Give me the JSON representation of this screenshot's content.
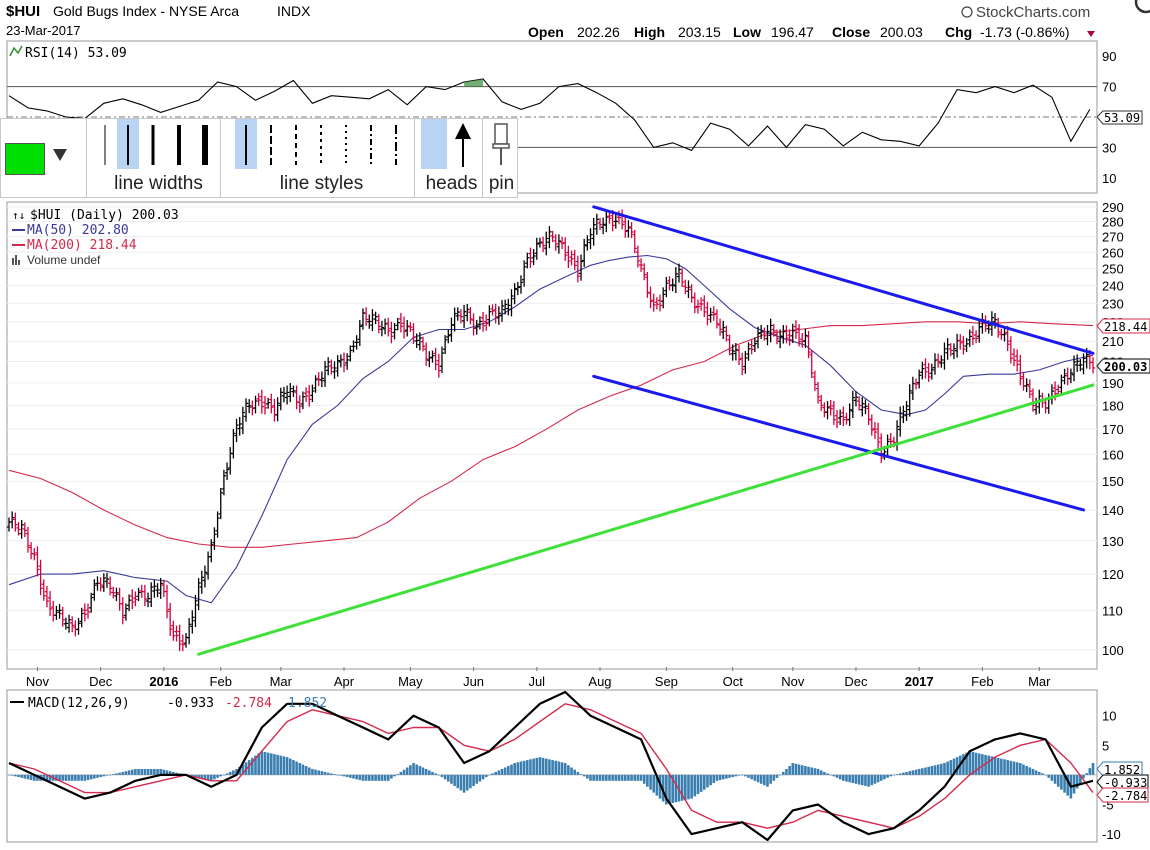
{
  "header": {
    "symbol": "$HUI",
    "name": "Gold Bugs Index - NYSE Arca",
    "exchange": "INDX",
    "date": "23-Mar-2017",
    "brand": "StockCharts.com",
    "quote": {
      "open_label": "Open",
      "open": "202.26",
      "high_label": "High",
      "high": "203.15",
      "low_label": "Low",
      "low": "196.47",
      "close_label": "Close",
      "close": "200.03",
      "chg_label": "Chg",
      "chg": "-1.73 (-0.86%)"
    }
  },
  "toolbar": {
    "color": "#00e000",
    "line_widths_label": "line widths",
    "line_styles_label": "line styles",
    "heads_label": "heads",
    "pin_label": "pin"
  },
  "colors": {
    "price_up": "#000000",
    "price_down": "#d4003c",
    "ma50": "#3a3a9a",
    "ma200": "#d4294a",
    "trend_blue": "#1a1aee",
    "trend_green": "#3fe03a",
    "macd_hist": "#3a7fb0",
    "rsi_fill": "#3a8a3a"
  },
  "chart_data": [
    {
      "type": "line",
      "id": "rsi",
      "legend": "RSI(14) 53.09",
      "ylim": [
        0,
        100
      ],
      "yticks": [
        10,
        30,
        50,
        70,
        90
      ],
      "reference_lines": [
        30,
        70
      ],
      "last_value_label": "53.09",
      "x": [
        0,
        6,
        12,
        18,
        24,
        30,
        36,
        42,
        48,
        54,
        60,
        66,
        72,
        78,
        84,
        90,
        96,
        102,
        108,
        114,
        120,
        126,
        132,
        138,
        144,
        150,
        156,
        162,
        168,
        174,
        180,
        186,
        192,
        198,
        204,
        210,
        216,
        222,
        228,
        234,
        240,
        246,
        252,
        258,
        264,
        270,
        276,
        282,
        288,
        294,
        300,
        306,
        312,
        318,
        324,
        330,
        336,
        342
      ],
      "values": [
        64,
        56,
        54,
        50,
        49,
        59,
        62,
        58,
        53,
        57,
        61,
        73,
        70,
        61,
        67,
        74,
        59,
        64,
        63,
        62,
        68,
        58,
        70,
        68,
        73,
        75,
        60,
        55,
        59,
        70,
        72,
        66,
        59,
        48,
        30,
        33,
        28,
        46,
        42,
        31,
        44,
        30,
        45,
        42,
        31,
        40,
        35,
        34,
        31,
        46,
        68,
        66,
        70,
        66,
        71,
        63,
        34,
        55
      ]
    },
    {
      "type": "line",
      "id": "price",
      "legend": [
        "$HUI (Daily) 200.03",
        "MA(50) 202.80",
        "MA(200) 218.44",
        "Volume undef"
      ],
      "ylim": [
        96,
        292
      ],
      "yticks": [
        100,
        110,
        120,
        130,
        140,
        150,
        160,
        170,
        180,
        190,
        200,
        210,
        220,
        230,
        240,
        250,
        260,
        270,
        280,
        290
      ],
      "xticks": [
        "Nov",
        "Dec",
        "2016",
        "Feb",
        "Mar",
        "Apr",
        "May",
        "Jun",
        "Jul",
        "Aug",
        "Sep",
        "Oct",
        "Nov",
        "Dec",
        "2017",
        "Feb",
        "Mar"
      ],
      "xtick_pos": [
        9,
        29,
        49,
        67,
        86,
        106,
        127,
        147,
        167,
        187,
        208,
        229,
        248,
        268,
        288,
        308,
        326
      ],
      "value_labels": [
        "218.44",
        "200.03"
      ],
      "series": [
        {
          "name": "$HUI (Daily) 200.03",
          "x": [
            0,
            4,
            8,
            12,
            16,
            20,
            24,
            28,
            32,
            36,
            40,
            44,
            48,
            52,
            56,
            60,
            64,
            68,
            72,
            76,
            80,
            84,
            88,
            92,
            96,
            100,
            104,
            108,
            112,
            116,
            120,
            124,
            128,
            132,
            136,
            140,
            144,
            148,
            152,
            156,
            160,
            164,
            168,
            172,
            176,
            180,
            184,
            188,
            192,
            196,
            200,
            204,
            208,
            212,
            216,
            220,
            224,
            228,
            232,
            236,
            240,
            244,
            248,
            252,
            256,
            260,
            264,
            268,
            272,
            276,
            280,
            284,
            288,
            292,
            296,
            300,
            304,
            308,
            312,
            316,
            320,
            324,
            328,
            332,
            336,
            340,
            343
          ],
          "values": [
            136,
            133,
            125,
            112,
            108,
            105,
            110,
            118,
            116,
            110,
            115,
            113,
            117,
            104,
            102,
            115,
            128,
            152,
            170,
            180,
            183,
            178,
            186,
            182,
            188,
            195,
            198,
            205,
            222,
            219,
            216,
            220,
            212,
            203,
            200,
            220,
            224,
            218,
            225,
            224,
            235,
            257,
            265,
            268,
            262,
            250,
            272,
            280,
            284,
            275,
            248,
            228,
            240,
            245,
            232,
            228,
            220,
            206,
            200,
            212,
            214,
            212,
            216,
            210,
            180,
            178,
            174,
            182,
            175,
            162,
            166,
            180,
            196,
            197,
            203,
            208,
            212,
            218,
            218,
            210,
            194,
            180,
            181,
            190,
            195,
            200,
            200
          ]
        },
        {
          "name": "MA(50) 202.80",
          "x": [
            0,
            10,
            20,
            30,
            40,
            50,
            56,
            64,
            72,
            80,
            88,
            96,
            104,
            112,
            120,
            128,
            136,
            144,
            152,
            160,
            168,
            176,
            184,
            190,
            196,
            202,
            208,
            214,
            220,
            228,
            236,
            244,
            252,
            260,
            268,
            276,
            284,
            290,
            296,
            302,
            310,
            318,
            326,
            334,
            343
          ],
          "values": [
            117,
            120,
            120,
            121,
            119,
            118,
            114,
            112,
            122,
            138,
            158,
            172,
            180,
            192,
            200,
            212,
            216,
            216,
            220,
            228,
            238,
            245,
            252,
            255,
            257,
            258,
            256,
            250,
            240,
            227,
            217,
            212,
            208,
            198,
            186,
            178,
            176,
            178,
            185,
            193,
            194,
            194,
            196,
            200,
            203
          ]
        },
        {
          "name": "MA(200) 218.44",
          "x": [
            0,
            10,
            20,
            30,
            40,
            50,
            60,
            70,
            80,
            90,
            100,
            110,
            120,
            130,
            140,
            150,
            160,
            170,
            180,
            190,
            200,
            210,
            220,
            230,
            240,
            250,
            260,
            270,
            280,
            290,
            300,
            310,
            320,
            330,
            343
          ],
          "values": [
            154,
            151,
            146,
            140,
            135,
            131,
            129,
            128,
            128,
            129,
            130,
            131,
            136,
            144,
            150,
            158,
            163,
            170,
            178,
            184,
            189,
            196,
            200,
            208,
            214,
            216,
            218,
            218,
            219,
            220,
            220,
            219,
            220,
            219,
            218
          ]
        }
      ],
      "trendlines": [
        {
          "name": "upper channel",
          "color": "blue",
          "from": [
            185,
            290
          ],
          "to": [
            343,
            204
          ]
        },
        {
          "name": "lower channel",
          "color": "blue",
          "from": [
            185,
            193
          ],
          "to": [
            340,
            140
          ]
        },
        {
          "name": "support",
          "color": "green",
          "from": [
            60,
            99
          ],
          "to": [
            343,
            189
          ]
        }
      ]
    },
    {
      "type": "bar",
      "id": "macd",
      "legend": [
        "MACD(12,26,9)",
        "-0.933",
        "-2.784",
        "1.852"
      ],
      "ylim": [
        -11,
        14
      ],
      "yticks": [
        -10,
        -5,
        0,
        5,
        10
      ],
      "value_labels": [
        "1.852",
        "-0.933",
        "-2.784"
      ],
      "x": [
        0,
        8,
        16,
        24,
        32,
        40,
        48,
        56,
        64,
        72,
        80,
        88,
        96,
        104,
        112,
        120,
        128,
        136,
        144,
        152,
        160,
        168,
        176,
        184,
        192,
        200,
        208,
        216,
        224,
        232,
        240,
        248,
        256,
        264,
        272,
        280,
        288,
        296,
        304,
        312,
        320,
        328,
        336,
        343
      ],
      "series": [
        {
          "name": "MACD",
          "values": [
            2,
            0,
            -2,
            -4,
            -3,
            -1,
            0,
            0,
            -2,
            0,
            8,
            12,
            12,
            10,
            8,
            6,
            10,
            8,
            2,
            4,
            8,
            12,
            14,
            10,
            8,
            6,
            -4,
            -10,
            -9,
            -8,
            -11,
            -6,
            -5,
            -8,
            -10,
            -9,
            -6,
            -2,
            4,
            6,
            7,
            6,
            -2,
            -1
          ]
        },
        {
          "name": "signal",
          "values": [
            2,
            1,
            -1,
            -3,
            -3,
            -2,
            -1,
            0,
            -1,
            -1,
            4,
            9,
            11,
            10,
            9,
            7,
            8,
            8,
            5,
            4,
            6,
            9,
            12,
            11,
            9,
            7,
            1,
            -6,
            -8,
            -8,
            -9,
            -8,
            -6,
            -7,
            -8,
            -9,
            -7,
            -4,
            0,
            3,
            5,
            6,
            2,
            -3
          ]
        },
        {
          "name": "histogram",
          "values": [
            0,
            -1,
            -1,
            -1,
            0,
            1,
            1,
            0,
            -1,
            1,
            4,
            3,
            1,
            0,
            -1,
            -1,
            2,
            0,
            -3,
            0,
            2,
            3,
            2,
            -1,
            -1,
            -1,
            -5,
            -4,
            -1,
            0,
            -2,
            2,
            1,
            -1,
            -2,
            0,
            1,
            2,
            4,
            3,
            2,
            0,
            -4,
            2
          ]
        }
      ]
    }
  ]
}
